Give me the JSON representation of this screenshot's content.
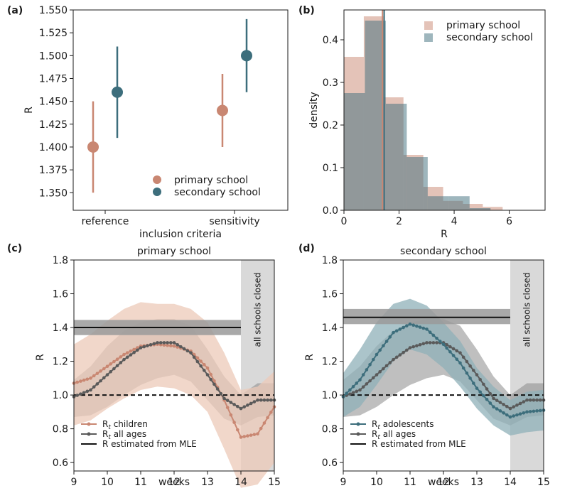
{
  "colors": {
    "primary": "#c98772",
    "secondary": "#3d6e7c",
    "all_ages": "#5a5a5a",
    "primary_band": "#ecc9b8",
    "secondary_band": "#8fb0b8",
    "all_band": "#8a8a8a",
    "mle_band": "#9a9a9a",
    "closed": "#d9d9d9"
  },
  "chart_data": [
    {
      "panel": "(a)",
      "type": "scatter",
      "title": "",
      "xlabel": "inclusion criteria",
      "ylabel": "R",
      "categories": [
        "reference",
        "sensitivity"
      ],
      "ylim": [
        1.33,
        1.55
      ],
      "yticks": [
        "1.350",
        "1.375",
        "1.400",
        "1.425",
        "1.450",
        "1.475",
        "1.500",
        "1.525",
        "1.550"
      ],
      "legend_position": "lower-right",
      "series": [
        {
          "name": "primary school",
          "color": "primary",
          "values": [
            1.4,
            1.44
          ],
          "lower": [
            1.35,
            1.4
          ],
          "upper": [
            1.45,
            1.48
          ]
        },
        {
          "name": "secondary school",
          "color": "secondary",
          "values": [
            1.46,
            1.5
          ],
          "lower": [
            1.41,
            1.46
          ],
          "upper": [
            1.51,
            1.54
          ]
        }
      ]
    },
    {
      "panel": "(b)",
      "type": "bar",
      "subtype": "histogram",
      "title": "",
      "xlabel": "R",
      "ylabel": "density",
      "xlim": [
        0,
        7.3
      ],
      "ylim": [
        0,
        0.47
      ],
      "xticks": [
        "0",
        "2",
        "4",
        "6"
      ],
      "yticks": [
        "0.0",
        "0.1",
        "0.2",
        "0.3",
        "0.4"
      ],
      "legend_position": "top-right",
      "series": [
        {
          "name": "primary school",
          "color": "primary",
          "bin_width": 0.72,
          "bin_start": 0,
          "values": [
            0.36,
            0.455,
            0.265,
            0.13,
            0.055,
            0.022,
            0.015,
            0.008,
            0.0
          ],
          "mean": 1.4
        },
        {
          "name": "secondary school",
          "color": "secondary",
          "bin_width": 0.76,
          "bin_start": 0,
          "values": [
            0.275,
            0.445,
            0.25,
            0.125,
            0.033,
            0.033,
            0.005,
            0.0
          ],
          "mean": 1.46
        }
      ]
    },
    {
      "panel": "(c)",
      "type": "line",
      "title": "primary school",
      "xlabel": "weeks",
      "ylabel": "R",
      "xlim": [
        9,
        15
      ],
      "ylim": [
        0.55,
        1.8
      ],
      "xticks": [
        "9",
        "10",
        "11",
        "12",
        "13",
        "14",
        "15"
      ],
      "yticks": [
        "0.6",
        "0.8",
        "1.0",
        "1.2",
        "1.4",
        "1.6",
        "1.8"
      ],
      "closed_period": [
        14,
        15
      ],
      "closed_label": "all schools closed",
      "reference_line": 1.0,
      "mle": {
        "value": 1.4,
        "lower": 1.355,
        "upper": 1.445,
        "x_end": 14
      },
      "legend_position": "lower-left",
      "legend": [
        "R$_t$ children",
        "R$_t$ all ages",
        "R estimated from MLE"
      ],
      "series": [
        {
          "name": "Rₜ children",
          "color": "primary",
          "x": [
            9.0,
            9.5,
            10.0,
            10.5,
            11.0,
            11.5,
            12.0,
            12.5,
            13.0,
            13.5,
            14.0,
            14.5,
            15.0
          ],
          "values": [
            1.07,
            1.1,
            1.17,
            1.24,
            1.29,
            1.3,
            1.29,
            1.26,
            1.16,
            0.97,
            0.75,
            0.77,
            0.93
          ],
          "lower": [
            0.82,
            0.85,
            0.92,
            0.98,
            1.03,
            1.05,
            1.04,
            1.0,
            0.9,
            0.68,
            0.45,
            0.47,
            0.6
          ],
          "upper": [
            1.3,
            1.36,
            1.44,
            1.51,
            1.55,
            1.54,
            1.54,
            1.51,
            1.43,
            1.25,
            1.03,
            1.05,
            1.14
          ]
        },
        {
          "name": "Rₜ all ages",
          "color": "all_ages",
          "x": [
            9.0,
            9.5,
            10.0,
            10.5,
            11.0,
            11.5,
            12.0,
            12.5,
            13.0,
            13.5,
            14.0,
            14.5,
            15.0
          ],
          "values": [
            0.99,
            1.03,
            1.12,
            1.21,
            1.28,
            1.31,
            1.31,
            1.25,
            1.12,
            0.98,
            0.92,
            0.97,
            0.97
          ],
          "lower": [
            0.87,
            0.88,
            0.93,
            1.0,
            1.06,
            1.1,
            1.12,
            1.08,
            0.97,
            0.86,
            0.82,
            0.87,
            0.88
          ],
          "upper": [
            1.09,
            1.17,
            1.29,
            1.38,
            1.43,
            1.45,
            1.45,
            1.41,
            1.27,
            1.11,
            1.0,
            1.07,
            1.07
          ]
        }
      ]
    },
    {
      "panel": "(d)",
      "type": "line",
      "title": "secondary school",
      "xlabel": "weeks",
      "ylabel": "R",
      "xlim": [
        9,
        15
      ],
      "ylim": [
        0.55,
        1.8
      ],
      "xticks": [
        "9",
        "10",
        "11",
        "12",
        "13",
        "14",
        "15"
      ],
      "yticks": [
        "0.6",
        "0.8",
        "1.0",
        "1.2",
        "1.4",
        "1.6",
        "1.8"
      ],
      "closed_period": [
        14,
        15
      ],
      "closed_label": "all schools closed",
      "reference_line": 1.0,
      "mle": {
        "value": 1.46,
        "lower": 1.42,
        "upper": 1.51,
        "x_end": 14
      },
      "legend_position": "lower-left",
      "legend": [
        "R$_t$ adolescents",
        "R$_t$ all ages",
        "R estimated from MLE"
      ],
      "series": [
        {
          "name": "Rₜ adolescents",
          "color": "secondary",
          "x": [
            9.0,
            9.5,
            10.0,
            10.5,
            11.0,
            11.5,
            12.0,
            12.5,
            13.0,
            13.5,
            14.0,
            14.5,
            15.0
          ],
          "values": [
            0.99,
            1.09,
            1.24,
            1.37,
            1.42,
            1.39,
            1.3,
            1.19,
            1.04,
            0.93,
            0.87,
            0.9,
            0.91
          ],
          "lower": [
            0.87,
            0.93,
            1.06,
            1.2,
            1.27,
            1.24,
            1.16,
            1.05,
            0.92,
            0.82,
            0.76,
            0.78,
            0.79
          ],
          "upper": [
            1.13,
            1.27,
            1.43,
            1.54,
            1.57,
            1.53,
            1.43,
            1.32,
            1.16,
            1.05,
            0.97,
            1.02,
            1.03
          ]
        },
        {
          "name": "Rₜ all ages",
          "color": "all_ages",
          "x": [
            9.0,
            9.5,
            10.0,
            10.5,
            11.0,
            11.5,
            12.0,
            12.5,
            13.0,
            13.5,
            14.0,
            14.5,
            15.0
          ],
          "values": [
            0.99,
            1.03,
            1.12,
            1.21,
            1.28,
            1.31,
            1.31,
            1.25,
            1.12,
            0.98,
            0.92,
            0.97,
            0.97
          ],
          "lower": [
            0.87,
            0.88,
            0.93,
            1.0,
            1.06,
            1.1,
            1.12,
            1.08,
            0.97,
            0.86,
            0.82,
            0.87,
            0.88
          ],
          "upper": [
            1.09,
            1.17,
            1.29,
            1.38,
            1.43,
            1.45,
            1.45,
            1.41,
            1.27,
            1.11,
            1.0,
            1.07,
            1.07
          ]
        }
      ]
    }
  ]
}
